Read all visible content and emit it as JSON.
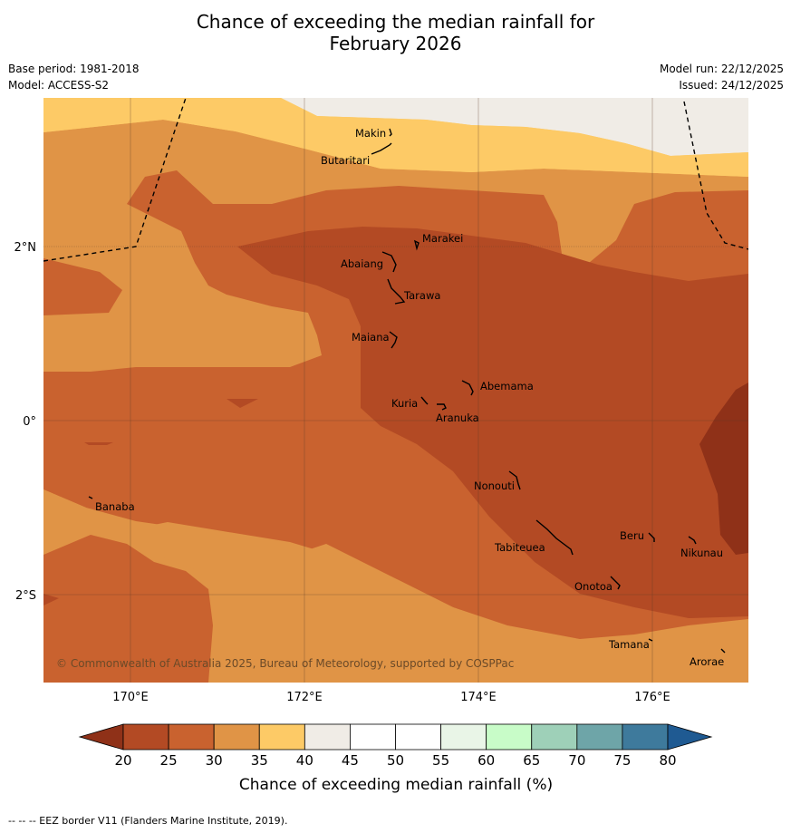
{
  "title": {
    "line1": "Chance of exceeding the median rainfall for",
    "line2": "February 2026"
  },
  "meta": {
    "base_period": "Base period: 1981-2018",
    "model": "Model: ACCESS-S2",
    "model_run": "Model run: 22/12/2025",
    "issued": "Issued: 24/12/2025"
  },
  "axes": {
    "x_ticks": [
      "170°E",
      "172°E",
      "174°E",
      "176°E"
    ],
    "y_ticks": [
      "2°N",
      "0°",
      "2°S"
    ]
  },
  "places": [
    {
      "name": "Makin"
    },
    {
      "name": "Butaritari"
    },
    {
      "name": "Marakei"
    },
    {
      "name": "Abaiang"
    },
    {
      "name": "Tarawa"
    },
    {
      "name": "Maiana"
    },
    {
      "name": "Abemama"
    },
    {
      "name": "Kuria"
    },
    {
      "name": "Aranuka"
    },
    {
      "name": "Nonouti"
    },
    {
      "name": "Banaba"
    },
    {
      "name": "Tabiteuea"
    },
    {
      "name": "Beru"
    },
    {
      "name": "Nikunau"
    },
    {
      "name": "Onotoa"
    },
    {
      "name": "Tamana"
    },
    {
      "name": "Arorae"
    }
  ],
  "copyright": "© Commonwealth of Australia 2025, Bureau of Meteorology, supported by COSPPac",
  "colorbar": {
    "label": "Chance of exceeding median rainfall (%)",
    "ticks": [
      "20",
      "25",
      "30",
      "35",
      "40",
      "45",
      "50",
      "55",
      "60",
      "65",
      "70",
      "75",
      "80"
    ],
    "colors": [
      "#b34a24",
      "#c9622f",
      "#e09446",
      "#fdca66",
      "#f0ece6",
      "#ffffff",
      "#ffffff",
      "#e9f5e7",
      "#c8fcc8",
      "#9ed0b8",
      "#6ea5a8",
      "#3e7a9c"
    ],
    "under_color": "#8f3118",
    "over_color": "#1f5a92"
  },
  "footer": "--  --  -- EEZ border V11 (Flanders Marine Institute, 2019)."
}
